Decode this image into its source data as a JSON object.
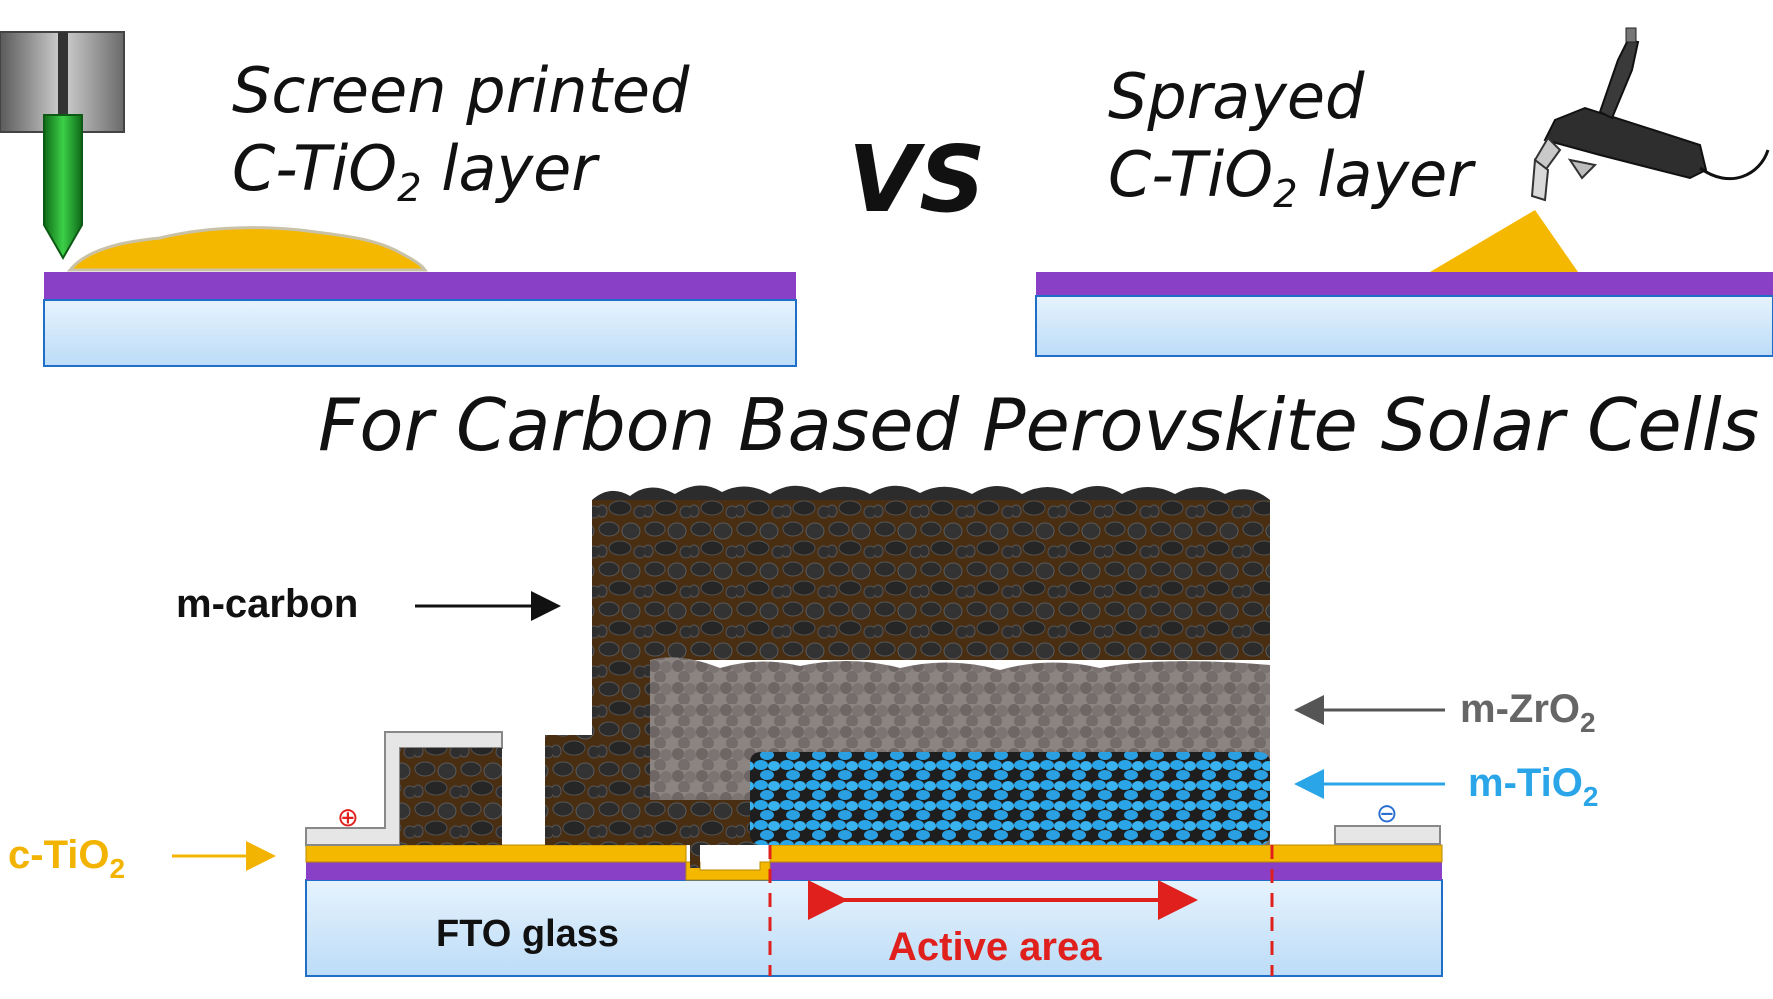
{
  "top": {
    "left_title_line1": "Screen printed",
    "left_title_line2_pre": "C-TiO",
    "left_title_line2_sub": "2",
    "left_title_line2_post": " layer",
    "vs_label": "VS",
    "right_title_line1": "Sprayed",
    "right_title_line2_pre": "C-TiO",
    "right_title_line2_sub": "2",
    "right_title_line2_post": " layer"
  },
  "main_title": "For Carbon Based Perovskite Solar Cells",
  "labels": {
    "m_carbon": "m-carbon",
    "m_zro2_pre": "m-ZrO",
    "m_zro2_sub": "2",
    "m_tio2_pre": "m-TiO",
    "m_tio2_sub": "2",
    "c_tio2_pre": "c-TiO",
    "c_tio2_sub": "2",
    "fto_glass": "FTO glass",
    "active_area": "Active area",
    "plus_symbol": "⊕",
    "minus_symbol": "⊖"
  },
  "colors": {
    "glass_fill": "#cfe8fb",
    "glass_stroke": "#1f6fc9",
    "fto_purple": "#8a3fc7",
    "tio2_yellow": "#f5b800",
    "carbon_bg": "#4a2e12",
    "carbon_particle": "#2b2b2b",
    "zro2_particle": "#7a7270",
    "tio2_particle": "#2aa6e8",
    "arrow_black": "#111111",
    "arrow_gray": "#555555",
    "arrow_blue": "#2aa6e8",
    "arrow_yellow": "#f2b400",
    "active_red": "#e0201c",
    "nozzle_green": "#1f9a2a"
  },
  "icons": [
    "screen-printer-nozzle-icon",
    "spray-gun-icon"
  ]
}
